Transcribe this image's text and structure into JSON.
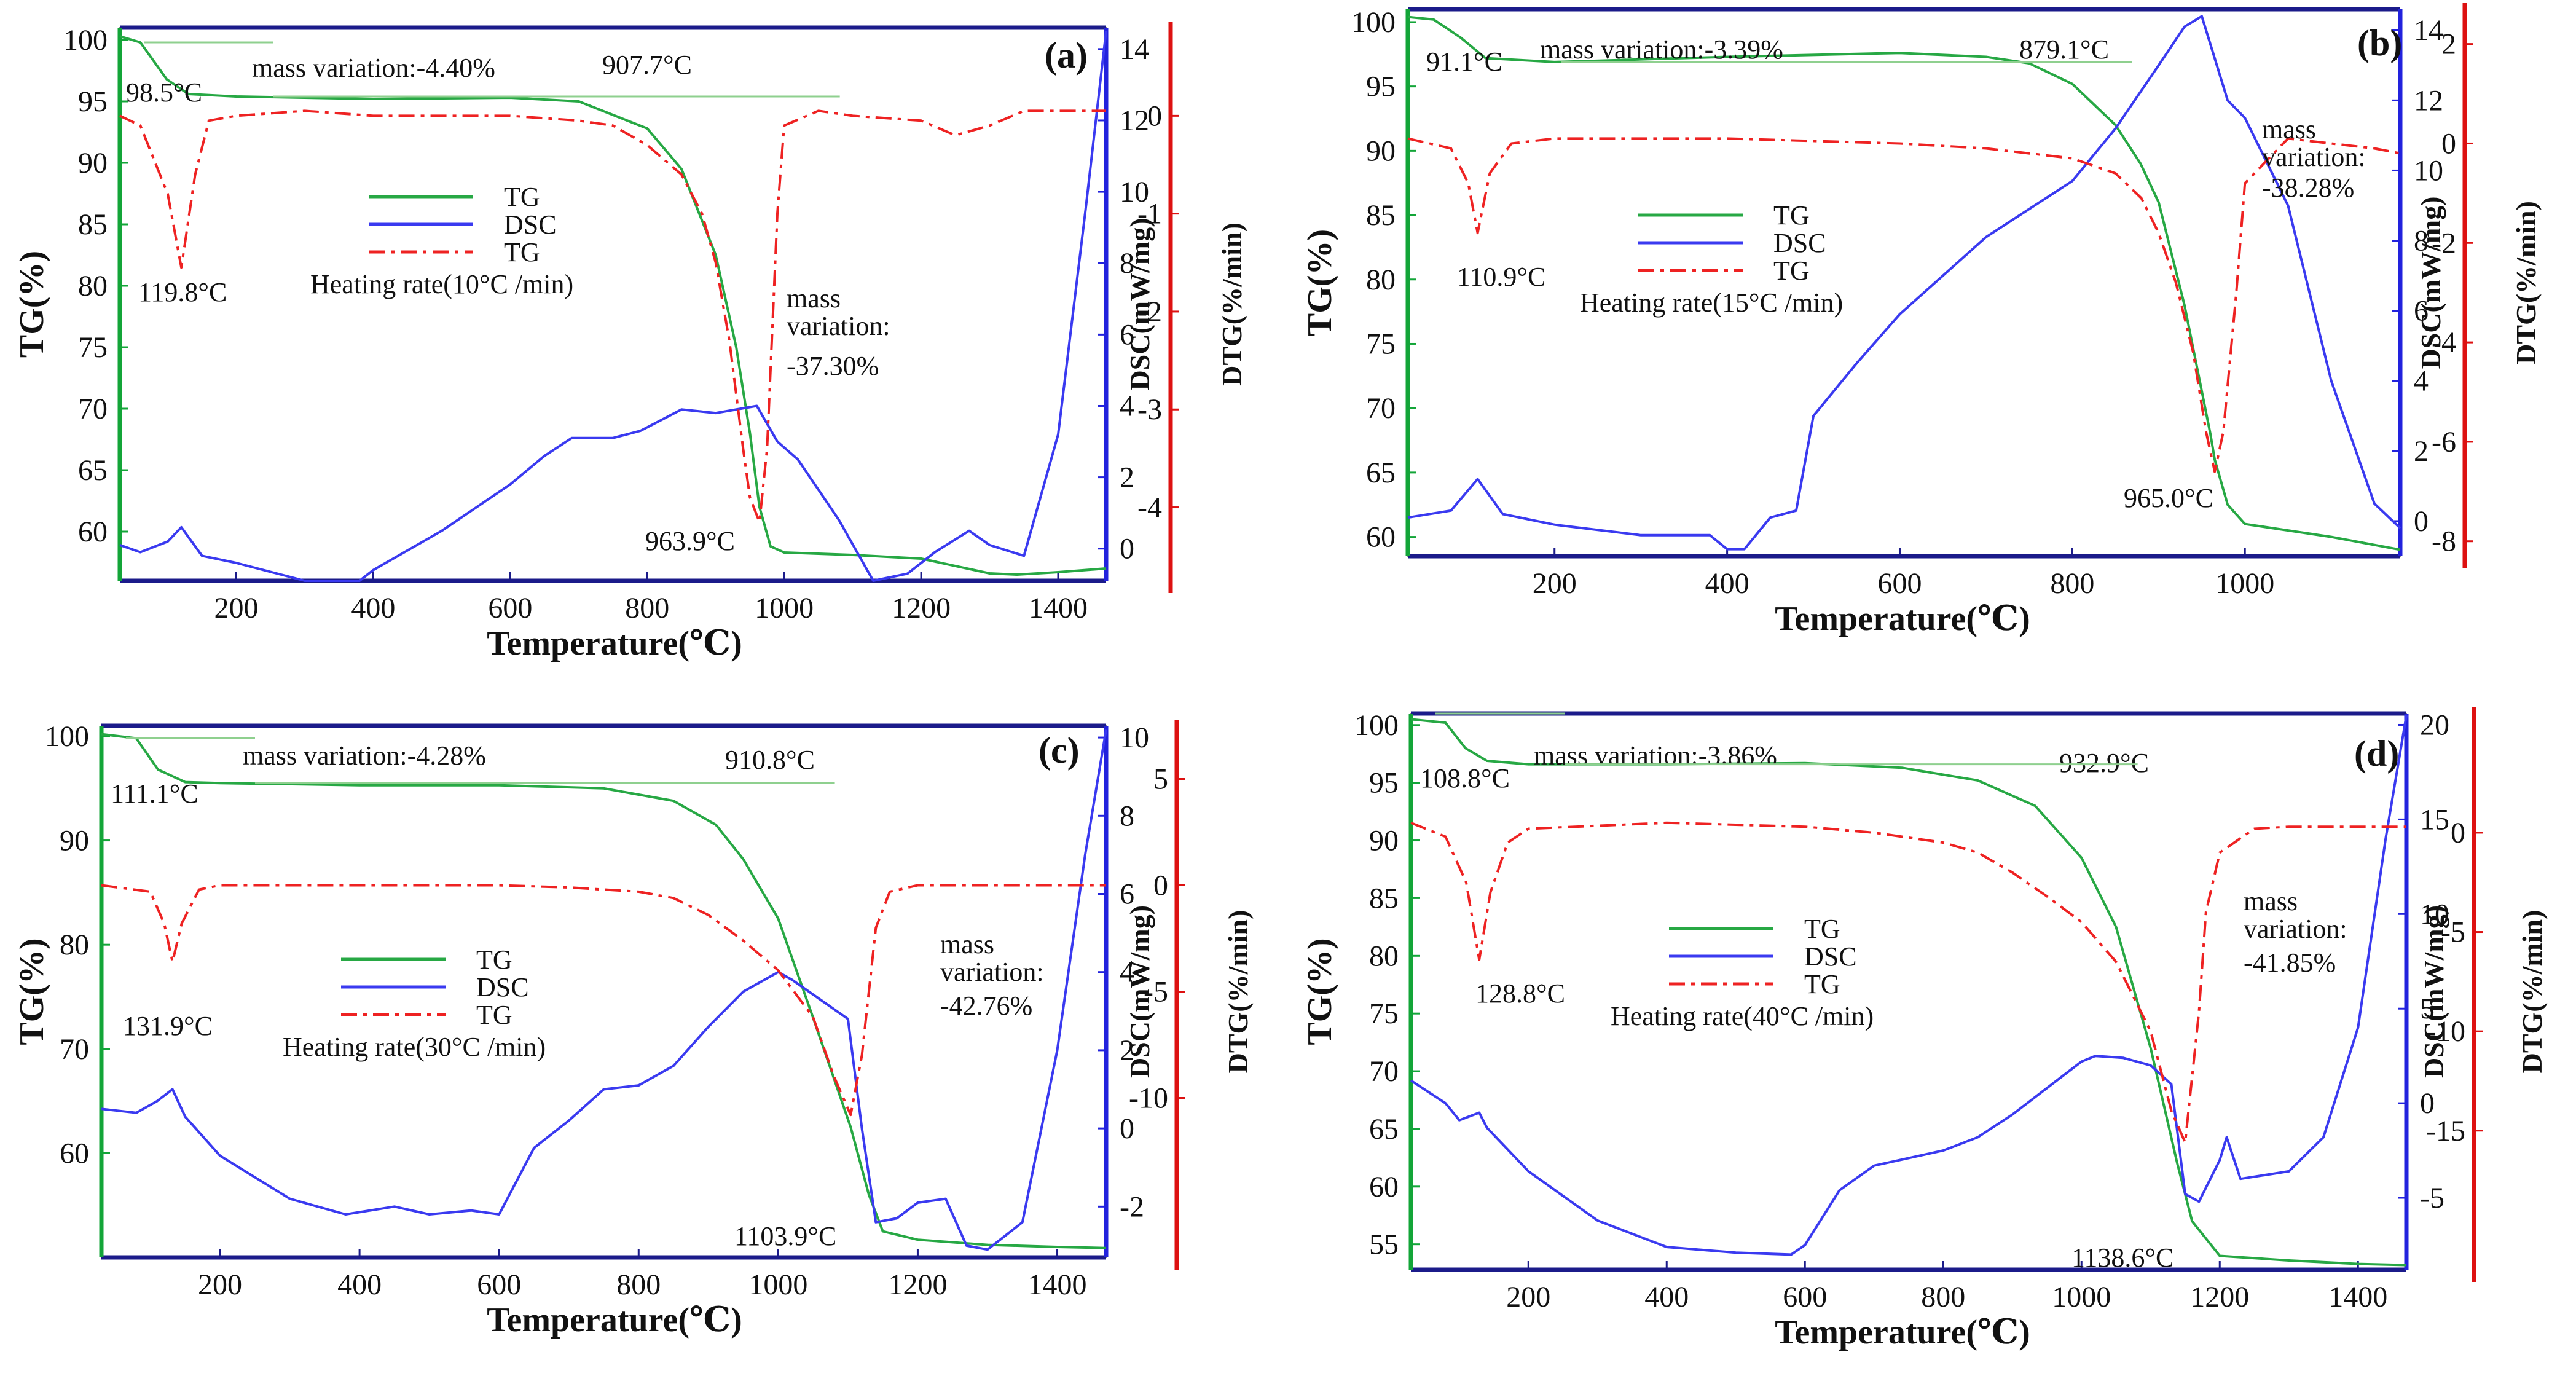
{
  "figure": {
    "panels": [
      "a",
      "b",
      "c",
      "d"
    ]
  },
  "colors": {
    "tg": "#27a844",
    "dsc": "#3a3af0",
    "dtg": "#ee2222",
    "axis_tg": "#13a538",
    "axis_dsc": "#2222dd",
    "axis_dtg": "#dd1111",
    "annot": "#8fd08f"
  },
  "chart_data": [
    {
      "type": "line",
      "panel_label": "(a)",
      "xlabel": "Temperature(℃)",
      "ylabel_left": "TG(%)",
      "ylabel_right1": "DSC(mW/mg)",
      "ylabel_right2": "DTG(%/min)",
      "xlim": [
        30,
        1470
      ],
      "xticks": [
        200,
        400,
        600,
        800,
        1000,
        1200,
        1400
      ],
      "ylim_left": [
        56,
        101
      ],
      "yticks_left": [
        60,
        65,
        70,
        75,
        80,
        85,
        90,
        95,
        100
      ],
      "ylim_right1": [
        -0.9,
        14.6
      ],
      "yticks_right1": [
        0,
        2,
        4,
        6,
        8,
        10,
        12,
        14
      ],
      "ylim_right2": [
        -4.75,
        0.9
      ],
      "yticks_right2": [
        0,
        -1,
        -2,
        -3,
        -4
      ],
      "legend": {
        "entries": [
          "TG",
          "DSC",
          "TG"
        ],
        "heating_rate": "Heating rate(10°C /min)"
      },
      "series": [
        {
          "name": "TG",
          "axis": "left",
          "x": [
            30,
            60,
            98.5,
            130,
            200,
            400,
            600,
            700,
            800,
            850,
            900,
            930,
            950,
            963.9,
            980,
            1000,
            1100,
            1200,
            1300,
            1340,
            1400,
            1470
          ],
          "y": [
            100.3,
            99.8,
            96.8,
            95.6,
            95.4,
            95.2,
            95.3,
            95.0,
            92.8,
            89.5,
            82.5,
            75.0,
            68.0,
            62.0,
            58.8,
            58.3,
            58.1,
            57.8,
            56.6,
            56.5,
            56.7,
            57.0
          ]
        },
        {
          "name": "DSC",
          "axis": "right1",
          "x": [
            30,
            60,
            100,
            119.8,
            150,
            200,
            300,
            380,
            400,
            500,
            600,
            650,
            690,
            750,
            790,
            850,
            900,
            960,
            990,
            1020,
            1080,
            1130,
            1180,
            1220,
            1270,
            1300,
            1350,
            1400,
            1440,
            1470
          ],
          "y": [
            0.1,
            -0.1,
            0.2,
            0.6,
            -0.2,
            -0.4,
            -0.9,
            -0.9,
            -0.6,
            0.5,
            1.8,
            2.6,
            3.1,
            3.1,
            3.3,
            3.9,
            3.8,
            4.0,
            3.0,
            2.5,
            0.8,
            -0.9,
            -0.7,
            -0.1,
            0.5,
            0.1,
            -0.2,
            3.2,
            9.5,
            14.5
          ]
        },
        {
          "name": "TG",
          "axis": "right2",
          "x": [
            30,
            60,
            100,
            119.8,
            140,
            160,
            200,
            300,
            400,
            500,
            600,
            700,
            750,
            800,
            850,
            880,
            900,
            920,
            940,
            950,
            963.9,
            975,
            990,
            1000,
            1050,
            1100,
            1200,
            1250,
            1300,
            1350,
            1400,
            1470
          ],
          "y": [
            0.0,
            -0.1,
            -0.8,
            -1.55,
            -0.6,
            -0.05,
            0.0,
            0.05,
            0.0,
            0.0,
            0.0,
            -0.05,
            -0.1,
            -0.3,
            -0.6,
            -1.0,
            -1.5,
            -2.3,
            -3.4,
            -3.9,
            -4.15,
            -3.4,
            -1.0,
            -0.1,
            0.05,
            0.0,
            -0.05,
            -0.2,
            -0.1,
            0.05,
            0.05,
            0.05
          ]
        }
      ],
      "annotations": [
        {
          "text": "mass variation:-4.40%"
        },
        {
          "text": "98.5°C"
        },
        {
          "text": "907.7°C"
        },
        {
          "text": "119.8°C"
        },
        {
          "text": "mass"
        },
        {
          "text": "variation:"
        },
        {
          "text": "-37.30%"
        },
        {
          "text": "963.9°C"
        }
      ]
    },
    {
      "type": "line",
      "panel_label": "(b)",
      "xlabel": "Temperature(℃)",
      "ylabel_left": "TG(%)",
      "ylabel_right1": "DSC(mW/mg)",
      "ylabel_right2": "DTG(%/min)",
      "xlim": [
        30,
        1180
      ],
      "xticks": [
        200,
        400,
        600,
        800,
        1000
      ],
      "ylim_left": [
        58.5,
        101
      ],
      "yticks_left": [
        60,
        65,
        70,
        75,
        80,
        85,
        90,
        95,
        100
      ],
      "ylim_right1": [
        -1,
        14.6
      ],
      "yticks_right1": [
        0,
        2,
        4,
        6,
        8,
        10,
        12,
        14
      ],
      "ylim_right2": [
        -8.3,
        2.7
      ],
      "yticks_right2": [
        2,
        0,
        -2,
        -4,
        -6,
        -8
      ],
      "legend": {
        "entries": [
          "TG",
          "DSC",
          "TG"
        ],
        "heating_rate": "Heating rate(15°C /min)"
      },
      "series": [
        {
          "name": "TG",
          "axis": "left",
          "x": [
            30,
            60,
            91.1,
            120,
            200,
            400,
            600,
            700,
            750,
            800,
            850,
            879.1,
            900,
            930,
            960,
            965.0,
            980,
            1000,
            1050,
            1100,
            1180
          ],
          "y": [
            100.4,
            100.2,
            98.8,
            97.2,
            96.9,
            97.3,
            97.6,
            97.3,
            96.8,
            95.2,
            92.0,
            89.0,
            86.0,
            78.0,
            68.0,
            66.0,
            62.5,
            61.0,
            60.5,
            60.0,
            59.0
          ]
        },
        {
          "name": "DSC",
          "axis": "right1",
          "x": [
            30,
            80,
            110.9,
            140,
            200,
            300,
            380,
            400,
            420,
            450,
            480,
            500,
            550,
            600,
            650,
            700,
            750,
            800,
            850,
            900,
            930,
            950,
            980,
            1000,
            1050,
            1100,
            1150,
            1180
          ],
          "y": [
            0.1,
            0.3,
            1.2,
            0.2,
            -0.1,
            -0.4,
            -0.4,
            -0.8,
            -0.8,
            0.1,
            0.3,
            3.0,
            4.5,
            5.9,
            7.0,
            8.1,
            8.9,
            9.7,
            11.2,
            13.0,
            14.1,
            14.4,
            12.0,
            11.5,
            9.0,
            4.0,
            0.5,
            -0.2
          ]
        },
        {
          "name": "TG",
          "axis": "right2",
          "x": [
            30,
            80,
            100,
            110.9,
            125,
            150,
            200,
            400,
            600,
            700,
            800,
            850,
            880,
            900,
            920,
            940,
            955,
            965.0,
            975,
            990,
            1000,
            1050,
            1100,
            1150,
            1180
          ],
          "y": [
            0.1,
            -0.1,
            -0.8,
            -1.8,
            -0.6,
            0.0,
            0.1,
            0.1,
            0.0,
            -0.1,
            -0.3,
            -0.6,
            -1.1,
            -1.8,
            -2.8,
            -4.2,
            -5.8,
            -6.6,
            -5.8,
            -3.0,
            -0.8,
            0.1,
            0.0,
            -0.1,
            -0.2
          ]
        }
      ],
      "annotations": [
        {
          "text": "mass variation:-3.39%"
        },
        {
          "text": "91.1°C"
        },
        {
          "text": "879.1°C"
        },
        {
          "text": "110.9°C"
        },
        {
          "text": "mass"
        },
        {
          "text": "variation:"
        },
        {
          "text": "-38.28%"
        },
        {
          "text": "965.0°C"
        }
      ]
    },
    {
      "type": "line",
      "panel_label": "(c)",
      "xlabel": "Temperature(℃)",
      "ylabel_left": "TG(%)",
      "ylabel_right1": "DSC(mW/mg)",
      "ylabel_right2": "DTG(%/min)",
      "xlim": [
        30,
        1470
      ],
      "xticks": [
        200,
        400,
        600,
        800,
        1000,
        1200,
        1400
      ],
      "ylim_left": [
        50,
        101
      ],
      "yticks_left": [
        60,
        70,
        80,
        90,
        100
      ],
      "ylim_right1": [
        -3.3,
        10.3
      ],
      "yticks_right1": [
        -2,
        0,
        2,
        4,
        6,
        8,
        10
      ],
      "ylim_right2": [
        -17.5,
        7.5
      ],
      "yticks_right2": [
        5,
        0,
        -5,
        -10
      ],
      "legend": {
        "entries": [
          "TG",
          "DSC",
          "TG"
        ],
        "heating_rate": "Heating rate(30°C /min)"
      },
      "series": [
        {
          "name": "TG",
          "axis": "left",
          "x": [
            30,
            80,
            111.1,
            150,
            200,
            400,
            600,
            750,
            850,
            910.8,
            950,
            1000,
            1050,
            1103.9,
            1130,
            1150,
            1200,
            1300,
            1400,
            1470
          ],
          "y": [
            100.2,
            99.8,
            96.8,
            95.6,
            95.5,
            95.3,
            95.3,
            95.0,
            93.8,
            91.5,
            88.2,
            82.5,
            73.0,
            62.5,
            56.0,
            52.5,
            51.7,
            51.2,
            51.0,
            50.9
          ]
        },
        {
          "name": "DSC",
          "axis": "right1",
          "x": [
            30,
            80,
            110,
            131.9,
            150,
            200,
            300,
            380,
            450,
            500,
            560,
            600,
            650,
            700,
            750,
            800,
            850,
            900,
            950,
            1000,
            1020,
            1060,
            1100,
            1120,
            1140,
            1170,
            1200,
            1240,
            1270,
            1300,
            1350,
            1400,
            1440,
            1470
          ],
          "y": [
            0.5,
            0.4,
            0.7,
            1.0,
            0.3,
            -0.7,
            -1.8,
            -2.2,
            -2.0,
            -2.2,
            -2.1,
            -2.2,
            -0.5,
            0.2,
            1.0,
            1.1,
            1.6,
            2.6,
            3.5,
            4.0,
            3.8,
            3.3,
            2.8,
            0.0,
            -2.4,
            -2.3,
            -1.9,
            -1.8,
            -3.0,
            -3.1,
            -2.4,
            2.0,
            7.0,
            10.2
          ]
        },
        {
          "name": "TG",
          "axis": "right2",
          "x": [
            30,
            100,
            120,
            131.9,
            145,
            170,
            200,
            400,
            600,
            700,
            800,
            850,
            900,
            950,
            1000,
            1050,
            1080,
            1103.9,
            1120,
            1140,
            1160,
            1200,
            1300,
            1470
          ],
          "y": [
            0.0,
            -0.3,
            -1.8,
            -3.6,
            -1.8,
            -0.2,
            0.0,
            0.0,
            0.0,
            -0.1,
            -0.3,
            -0.6,
            -1.4,
            -2.6,
            -4.0,
            -6.2,
            -9.0,
            -10.8,
            -8.0,
            -2.0,
            -0.3,
            0.0,
            0.0,
            0.0
          ]
        }
      ],
      "annotations": [
        {
          "text": "mass variation:-4.28%"
        },
        {
          "text": "111.1°C"
        },
        {
          "text": "910.8°C"
        },
        {
          "text": "131.9°C"
        },
        {
          "text": "mass"
        },
        {
          "text": "variation:"
        },
        {
          "text": "-42.76%"
        },
        {
          "text": "1103.9°C"
        }
      ]
    },
    {
      "type": "line",
      "panel_label": "(d)",
      "xlabel": "Temperature(℃)",
      "ylabel_left": "TG(%)",
      "ylabel_right1": "DSC(mW/mg)",
      "ylabel_right2": "DTG(%/min)",
      "xlim": [
        30,
        1470
      ],
      "xticks": [
        200,
        400,
        600,
        800,
        1000,
        1200,
        1400
      ],
      "ylim_left": [
        52.8,
        101
      ],
      "yticks_left": [
        55,
        60,
        65,
        70,
        75,
        80,
        85,
        90,
        95,
        100
      ],
      "ylim_right1": [
        -8.8,
        20.6
      ],
      "yticks_right1": [
        -5,
        0,
        5,
        10,
        15,
        20
      ],
      "ylim_right2": [
        -22,
        6
      ],
      "yticks_right2": [
        0,
        -5,
        -10,
        -15
      ],
      "legend": {
        "entries": [
          "TG",
          "DSC",
          "TG"
        ],
        "heating_rate": "Heating rate(40°C /min)"
      },
      "series": [
        {
          "name": "TG",
          "axis": "left",
          "x": [
            30,
            80,
            108.8,
            140,
            200,
            400,
            600,
            740,
            850,
            932.9,
            1000,
            1050,
            1100,
            1138.6,
            1160,
            1200,
            1300,
            1400,
            1470
          ],
          "y": [
            100.5,
            100.2,
            98.0,
            96.9,
            96.6,
            96.6,
            96.7,
            96.3,
            95.2,
            93.0,
            88.5,
            82.5,
            72.0,
            62.0,
            57.0,
            54.0,
            53.6,
            53.3,
            53.2
          ]
        },
        {
          "name": "DSC",
          "axis": "right1",
          "x": [
            30,
            80,
            100,
            128.8,
            140,
            200,
            300,
            400,
            500,
            580,
            600,
            650,
            700,
            750,
            800,
            850,
            900,
            950,
            1000,
            1020,
            1060,
            1100,
            1130,
            1150,
            1170,
            1200,
            1210,
            1230,
            1300,
            1350,
            1400,
            1440,
            1470
          ],
          "y": [
            1.2,
            0.0,
            -0.9,
            -0.5,
            -1.3,
            -3.6,
            -6.2,
            -7.6,
            -7.9,
            -8.0,
            -7.5,
            -4.6,
            -3.3,
            -2.9,
            -2.5,
            -1.8,
            -0.6,
            0.8,
            2.2,
            2.5,
            2.4,
            2.0,
            1.0,
            -4.8,
            -5.2,
            -3.0,
            -1.8,
            -4.0,
            -3.6,
            -1.8,
            4.0,
            14.0,
            20.5
          ]
        },
        {
          "name": "TG",
          "axis": "right2",
          "x": [
            30,
            80,
            110,
            128.8,
            145,
            170,
            200,
            400,
            600,
            700,
            800,
            850,
            900,
            950,
            1000,
            1050,
            1100,
            1130,
            1150,
            1170,
            1180,
            1200,
            1250,
            1300,
            1470
          ],
          "y": [
            0.5,
            -0.2,
            -2.5,
            -6.4,
            -3.0,
            -0.5,
            0.2,
            0.5,
            0.3,
            0.0,
            -0.5,
            -1.0,
            -2.0,
            -3.2,
            -4.5,
            -6.5,
            -10.0,
            -14.0,
            -15.6,
            -9.0,
            -4.0,
            -1.0,
            0.2,
            0.3,
            0.3
          ]
        }
      ],
      "annotations": [
        {
          "text": "mass variation:-3.86%"
        },
        {
          "text": "108.8°C"
        },
        {
          "text": "932.9°C"
        },
        {
          "text": "128.8°C"
        },
        {
          "text": "mass"
        },
        {
          "text": "variation:"
        },
        {
          "text": "-41.85%"
        },
        {
          "text": "1138.6°C"
        }
      ]
    }
  ]
}
